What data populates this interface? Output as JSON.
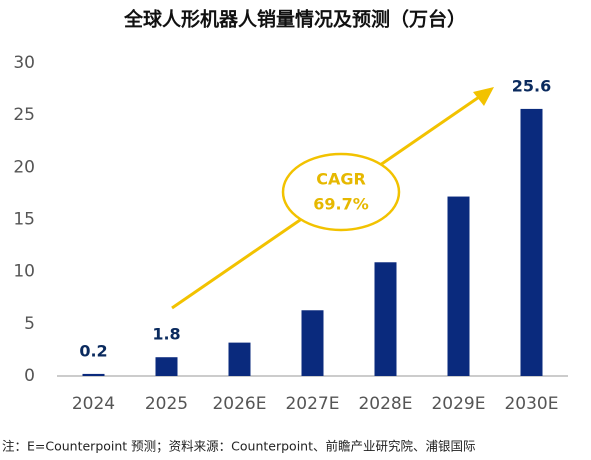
{
  "chart_data": {
    "type": "bar",
    "title": "全球人形机器人销量情况及预测（万台）",
    "categories": [
      "2024",
      "2025",
      "2026E",
      "2027E",
      "2028E",
      "2029E",
      "2030E"
    ],
    "values": [
      0.2,
      1.8,
      3.2,
      6.3,
      10.9,
      17.2,
      25.6
    ],
    "value_labels": [
      "0.2",
      "1.8",
      null,
      null,
      null,
      null,
      "25.6"
    ],
    "color": "#0a2a7d",
    "ylim": [
      0,
      30
    ],
    "yticks": [
      0,
      5,
      10,
      15,
      20,
      25,
      30
    ],
    "grid": false,
    "annotation": [
      "CAGR",
      "69.7%"
    ],
    "note": "注：E=Counterpoint 预测；资料来源：Counterpoint、前瞻产业研究院、浦银国际"
  }
}
